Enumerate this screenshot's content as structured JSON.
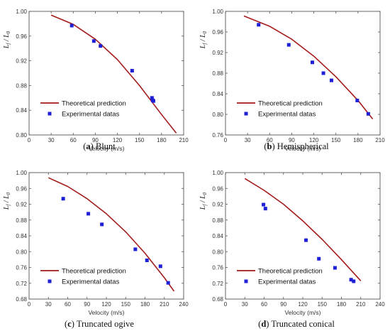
{
  "colors": {
    "theory": "#a31c1c",
    "experiment": "#1f1fd6",
    "axis": "#555555"
  },
  "legend": {
    "theory": "Theoretical prediction",
    "experiment": "Experimental datas"
  },
  "chart_data": [
    {
      "type": "line",
      "caption": {
        "label": "a",
        "text": "Blunt"
      },
      "xlabel": "Velocity (m/s)",
      "ylabel": "L_f / L_0",
      "xlim": [
        0,
        210
      ],
      "xticks": [
        0,
        30,
        60,
        90,
        120,
        150,
        180,
        210
      ],
      "ylim": [
        0.8,
        1.0
      ],
      "yticks": [
        0.8,
        0.84,
        0.88,
        0.92,
        0.96,
        1.0
      ],
      "theory": {
        "x": [
          30,
          60,
          90,
          120,
          150,
          180,
          200
        ],
        "y": [
          0.994,
          0.979,
          0.955,
          0.922,
          0.88,
          0.833,
          0.803
        ]
      },
      "experiment": {
        "x": [
          58,
          88,
          97,
          140,
          167,
          168,
          169
        ],
        "y": [
          0.977,
          0.952,
          0.944,
          0.904,
          0.86,
          0.856,
          0.855
        ]
      }
    },
    {
      "type": "line",
      "caption": {
        "label": "b",
        "text": "Hemispherical"
      },
      "xlabel": "Velocity (m/s)",
      "ylabel": "L_f / L_0",
      "xlim": [
        0,
        210
      ],
      "xticks": [
        0,
        30,
        60,
        90,
        120,
        150,
        180,
        210
      ],
      "ylim": [
        0.76,
        1.0
      ],
      "yticks": [
        0.76,
        0.8,
        0.84,
        0.88,
        0.92,
        0.96,
        1.0
      ],
      "theory": {
        "x": [
          25,
          60,
          90,
          120,
          150,
          180,
          200
        ],
        "y": [
          0.991,
          0.971,
          0.946,
          0.913,
          0.873,
          0.827,
          0.791
        ]
      },
      "experiment": {
        "x": [
          45,
          86,
          118,
          133,
          144,
          179,
          194
        ],
        "y": [
          0.974,
          0.935,
          0.901,
          0.88,
          0.866,
          0.827,
          0.801
        ]
      }
    },
    {
      "type": "line",
      "caption": {
        "label": "c",
        "text": "Truncated ogive"
      },
      "xlabel": "Velocity (m/s)",
      "ylabel": "L_f / L_0",
      "xlim": [
        0,
        240
      ],
      "xticks": [
        0,
        30,
        60,
        90,
        120,
        150,
        180,
        210,
        240
      ],
      "ylim": [
        0.68,
        1.0
      ],
      "yticks": [
        0.68,
        0.72,
        0.76,
        0.8,
        0.84,
        0.88,
        0.92,
        0.96,
        1.0
      ],
      "theory": {
        "x": [
          30,
          60,
          90,
          120,
          150,
          180,
          210,
          225
        ],
        "y": [
          0.987,
          0.965,
          0.934,
          0.896,
          0.85,
          0.796,
          0.734,
          0.7
        ]
      },
      "experiment": {
        "x": [
          53,
          92,
          113,
          165,
          183,
          204,
          216
        ],
        "y": [
          0.934,
          0.896,
          0.869,
          0.806,
          0.778,
          0.763,
          0.721
        ]
      }
    },
    {
      "type": "line",
      "caption": {
        "label": "d",
        "text": "Truncated conical"
      },
      "xlabel": "Velocity (m/s)",
      "ylabel": "L_f / L_0",
      "xlim": [
        0,
        240
      ],
      "xticks": [
        0,
        30,
        60,
        90,
        120,
        150,
        180,
        210,
        240
      ],
      "ylim": [
        0.68,
        1.0
      ],
      "yticks": [
        0.68,
        0.72,
        0.76,
        0.8,
        0.84,
        0.88,
        0.92,
        0.96,
        1.0
      ],
      "theory": {
        "x": [
          30,
          60,
          90,
          120,
          150,
          180,
          210
        ],
        "y": [
          0.985,
          0.955,
          0.92,
          0.878,
          0.831,
          0.78,
          0.726
        ]
      },
      "experiment": {
        "x": [
          59,
          62,
          125,
          145,
          170,
          195,
          199
        ],
        "y": [
          0.919,
          0.909,
          0.829,
          0.782,
          0.759,
          0.729,
          0.725
        ]
      }
    }
  ]
}
